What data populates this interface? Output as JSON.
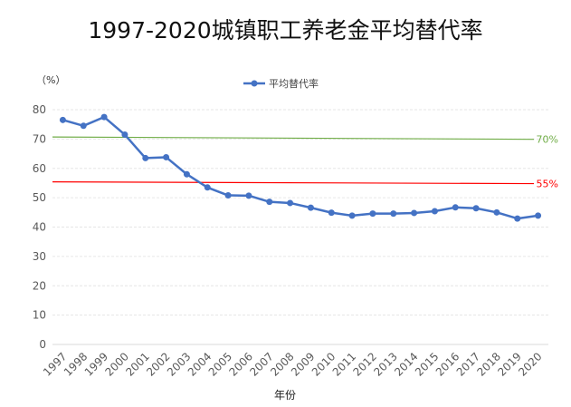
{
  "chart_data": {
    "type": "line",
    "title": "1997-2020城镇职工养老金平均替代率",
    "ylabel": "（%）",
    "xlabel": "年份",
    "ylim": [
      0,
      80
    ],
    "yticks": [
      0,
      10,
      20,
      30,
      40,
      50,
      60,
      70,
      80
    ],
    "grid": true,
    "legend_position": "top-center",
    "categories": [
      "1997",
      "1998",
      "1999",
      "2000",
      "2001",
      "2002",
      "2003",
      "2004",
      "2005",
      "2006",
      "2007",
      "2008",
      "2009",
      "2010",
      "2011",
      "2012",
      "2013",
      "2014",
      "2015",
      "2016",
      "2017",
      "2018",
      "2019",
      "2020"
    ],
    "series": [
      {
        "name": "平均替代率",
        "color": "#4472c4",
        "values": [
          76.5,
          74.5,
          77.5,
          71.5,
          63.5,
          63.8,
          58,
          53.5,
          50.8,
          50.7,
          48.6,
          48.2,
          46.6,
          44.9,
          43.9,
          44.6,
          44.6,
          44.8,
          45.4,
          46.7,
          46.4,
          45.0,
          42.9,
          43.9
        ]
      }
    ],
    "reference_lines": [
      {
        "label": "70%",
        "start": 70.7,
        "end": 69.9,
        "color": "#70ad47"
      },
      {
        "label": "55%",
        "start": 55.4,
        "end": 54.8,
        "color": "#ff0000"
      }
    ]
  }
}
